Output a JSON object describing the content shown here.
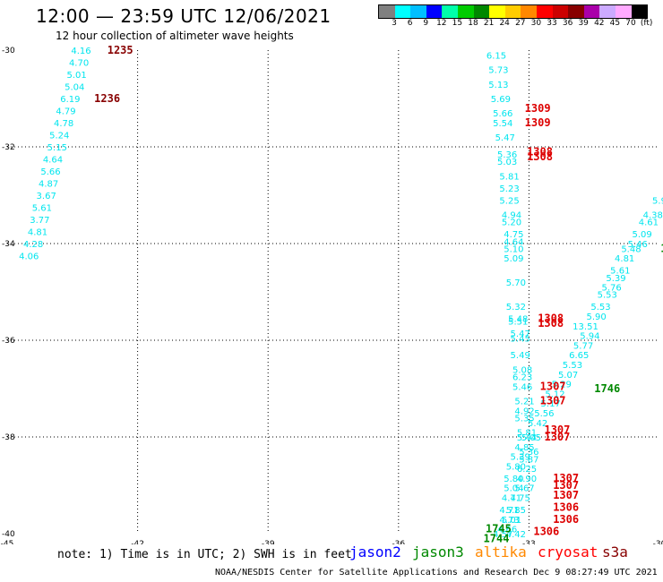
{
  "header": {
    "title": "12:00 — 23:59 UTC 12/06/2021",
    "subtitle": "12 hour collection of altimeter wave heights"
  },
  "color_scale": {
    "labels": [
      "3",
      "6",
      "9",
      "12",
      "15",
      "18",
      "21",
      "24",
      "27",
      "30",
      "33",
      "36",
      "39",
      "42",
      "45",
      "70",
      "(ft)"
    ],
    "colors": [
      "#808080",
      "#00ffff",
      "#00bfff",
      "#0000ff",
      "#00ffaa",
      "#00cc00",
      "#008800",
      "#ffff00",
      "#ffcc00",
      "#ff8800",
      "#ff0000",
      "#cc0000",
      "#880000",
      "#aa00aa",
      "#ccaaff",
      "#ffaaff",
      "#000000"
    ]
  },
  "map": {
    "lon_range": [
      -45,
      -30
    ],
    "lat_range": [
      -40,
      -30
    ],
    "lat_labels": [
      "-30",
      "-32",
      "-34",
      "-36",
      "-38",
      "-40"
    ],
    "lon_labels": [
      "-45",
      "-42",
      "-39",
      "-36",
      "-33",
      "-30"
    ],
    "grid": "dotted",
    "swh_color": "#00e5ee",
    "track_a": [
      {
        "lon": -43.3,
        "lat": -30.0,
        "v": "4.16"
      },
      {
        "lon": -43.35,
        "lat": -30.25,
        "v": "4.70"
      },
      {
        "lon": -43.4,
        "lat": -30.5,
        "v": "5.01"
      },
      {
        "lon": -43.45,
        "lat": -30.75,
        "v": "5.04"
      },
      {
        "lon": -43.55,
        "lat": -31.0,
        "v": "6.19"
      },
      {
        "lon": -43.65,
        "lat": -31.25,
        "v": "4.79"
      },
      {
        "lon": -43.7,
        "lat": -31.5,
        "v": "4.78"
      },
      {
        "lon": -43.8,
        "lat": -31.75,
        "v": "5.24"
      },
      {
        "lon": -43.85,
        "lat": -32.0,
        "v": "5.15"
      },
      {
        "lon": -43.95,
        "lat": -32.25,
        "v": "4.64"
      },
      {
        "lon": -44.0,
        "lat": -32.5,
        "v": "5.66"
      },
      {
        "lon": -44.05,
        "lat": -32.75,
        "v": "4.87"
      },
      {
        "lon": -44.1,
        "lat": -33.0,
        "v": "3.67"
      },
      {
        "lon": -44.2,
        "lat": -33.25,
        "v": "5.61"
      },
      {
        "lon": -44.25,
        "lat": -33.5,
        "v": "3.77"
      },
      {
        "lon": -44.3,
        "lat": -33.75,
        "v": "4.81"
      },
      {
        "lon": -44.4,
        "lat": -34.0,
        "v": "4.28"
      },
      {
        "lon": -44.5,
        "lat": -34.25,
        "v": "4.06"
      }
    ],
    "track_b": [
      {
        "lon": -33.75,
        "lat": -30.1,
        "v": "6.15"
      },
      {
        "lon": -33.7,
        "lat": -30.4,
        "v": "5.73"
      },
      {
        "lon": -33.7,
        "lat": -30.7,
        "v": "5.13"
      },
      {
        "lon": -33.65,
        "lat": -31.0,
        "v": "5.69"
      },
      {
        "lon": -33.6,
        "lat": -31.3,
        "v": "5.66"
      },
      {
        "lon": -33.6,
        "lat": -31.5,
        "v": "5.54"
      },
      {
        "lon": -33.55,
        "lat": -31.8,
        "v": "5.47"
      },
      {
        "lon": -33.5,
        "lat": -32.15,
        "v": "5.36"
      },
      {
        "lon": -33.5,
        "lat": -32.3,
        "v": "5.03"
      },
      {
        "lon": -33.45,
        "lat": -32.6,
        "v": "5.81"
      },
      {
        "lon": -33.45,
        "lat": -32.85,
        "v": "5.23"
      },
      {
        "lon": -33.45,
        "lat": -33.1,
        "v": "5.25"
      },
      {
        "lon": -33.4,
        "lat": -33.4,
        "v": "4.94"
      },
      {
        "lon": -33.4,
        "lat": -33.55,
        "v": "5.20"
      },
      {
        "lon": -33.35,
        "lat": -33.8,
        "v": "4.75"
      },
      {
        "lon": -33.35,
        "lat": -33.95,
        "v": "4.64"
      },
      {
        "lon": -33.35,
        "lat": -34.1,
        "v": "5.10"
      },
      {
        "lon": -33.35,
        "lat": -34.3,
        "v": "5.09"
      },
      {
        "lon": -33.3,
        "lat": -34.8,
        "v": "5.70"
      },
      {
        "lon": -33.3,
        "lat": -35.3,
        "v": "5.32"
      },
      {
        "lon": -33.25,
        "lat": -35.55,
        "v": "5.48"
      },
      {
        "lon": -33.25,
        "lat": -35.6,
        "v": "5.51"
      },
      {
        "lon": -33.2,
        "lat": -35.85,
        "v": "5.47"
      },
      {
        "lon": -33.2,
        "lat": -35.95,
        "v": "5.45"
      },
      {
        "lon": -33.2,
        "lat": -36.3,
        "v": "5.49"
      },
      {
        "lon": -33.15,
        "lat": -36.6,
        "v": "5.08"
      },
      {
        "lon": -33.15,
        "lat": -36.75,
        "v": "6.23"
      },
      {
        "lon": -33.15,
        "lat": -36.95,
        "v": "5.46"
      },
      {
        "lon": -33.1,
        "lat": -37.25,
        "v": "5.21"
      },
      {
        "lon": -33.1,
        "lat": -37.45,
        "v": "4.92"
      },
      {
        "lon": -33.1,
        "lat": -37.6,
        "v": "5.35"
      },
      {
        "lon": -33.05,
        "lat": -37.9,
        "v": "5.81"
      },
      {
        "lon": -33.05,
        "lat": -38.0,
        "v": "5.44"
      },
      {
        "lon": -33.0,
        "lat": -38.3,
        "v": "5.36"
      },
      {
        "lon": -33.0,
        "lat": -38.45,
        "v": "5.87"
      },
      {
        "lon": -33.05,
        "lat": -38.65,
        "v": "6.25"
      },
      {
        "lon": -33.05,
        "lat": -38.85,
        "v": "4.90"
      },
      {
        "lon": -33.1,
        "lat": -39.05,
        "v": "5.67"
      },
      {
        "lon": -33.2,
        "lat": -39.25,
        "v": "4.75"
      },
      {
        "lon": -33.3,
        "lat": -39.5,
        "v": "5.85"
      },
      {
        "lon": -33.4,
        "lat": -39.7,
        "v": "5.01"
      },
      {
        "lon": -33.5,
        "lat": -39.9,
        "v": "4.66"
      },
      {
        "lon": -33.6,
        "lat": -40.0,
        "v": "4.57"
      }
    ],
    "track_c": [
      {
        "lon": -30.0,
        "lat": -33.1,
        "v": "5.9"
      },
      {
        "lon": -30.15,
        "lat": -33.4,
        "v": "4.38"
      },
      {
        "lon": -30.25,
        "lat": -33.55,
        "v": "4.61"
      },
      {
        "lon": -30.4,
        "lat": -33.8,
        "v": "5.09"
      },
      {
        "lon": -30.5,
        "lat": -34.0,
        "v": "5.46"
      },
      {
        "lon": -30.65,
        "lat": -34.1,
        "v": "5.48"
      },
      {
        "lon": -30.8,
        "lat": -34.3,
        "v": "4.81"
      },
      {
        "lon": -30.9,
        "lat": -34.55,
        "v": "5.61"
      },
      {
        "lon": -31.0,
        "lat": -34.7,
        "v": "5.39"
      },
      {
        "lon": -31.1,
        "lat": -34.9,
        "v": "5.76"
      },
      {
        "lon": -31.2,
        "lat": -35.05,
        "v": "5.53"
      },
      {
        "lon": -31.35,
        "lat": -35.3,
        "v": "5.53"
      },
      {
        "lon": -31.45,
        "lat": -35.5,
        "v": "5.90"
      },
      {
        "lon": -31.6,
        "lat": -35.9,
        "v": "5.94"
      },
      {
        "lon": -31.75,
        "lat": -36.1,
        "v": "5.77"
      },
      {
        "lon": -31.85,
        "lat": -36.3,
        "v": "6.65"
      },
      {
        "lon": -32.0,
        "lat": -36.5,
        "v": "5.53"
      },
      {
        "lon": -32.1,
        "lat": -36.7,
        "v": "5.07"
      },
      {
        "lon": -32.25,
        "lat": -36.9,
        "v": "5.29"
      },
      {
        "lon": -32.4,
        "lat": -37.1,
        "v": "5.12"
      },
      {
        "lon": -32.5,
        "lat": -37.3,
        "v": "5.17"
      },
      {
        "lon": -32.65,
        "lat": -37.5,
        "v": "5.56"
      },
      {
        "lon": -32.8,
        "lat": -37.7,
        "v": "5.42"
      },
      {
        "lon": -32.95,
        "lat": -38.0,
        "v": "5.05"
      },
      {
        "lon": -33.1,
        "lat": -38.2,
        "v": "4.85"
      },
      {
        "lon": -33.2,
        "lat": -38.4,
        "v": "5.39"
      },
      {
        "lon": -33.3,
        "lat": -38.6,
        "v": "5.80"
      },
      {
        "lon": -33.35,
        "lat": -38.85,
        "v": "5.80"
      },
      {
        "lon": -33.35,
        "lat": -39.05,
        "v": "5.04"
      },
      {
        "lon": -33.4,
        "lat": -39.25,
        "v": "4.71"
      },
      {
        "lon": -33.45,
        "lat": -39.5,
        "v": "4.71"
      },
      {
        "lon": -33.45,
        "lat": -39.7,
        "v": "4.73"
      }
    ],
    "special_values": [
      {
        "lon": -31.7,
        "lat": -35.7,
        "v": "13.51",
        "color": "#aaee33"
      },
      {
        "lon": -33.3,
        "lat": -40.0,
        "v": "4.42",
        "color": "#888888"
      }
    ],
    "time_labels": [
      {
        "lon": -42.4,
        "lat": -30.0,
        "t": "1235",
        "color": "#880000"
      },
      {
        "lon": -42.7,
        "lat": -31.0,
        "t": "1236",
        "color": "#880000"
      },
      {
        "lon": -32.8,
        "lat": -31.2,
        "t": "1309",
        "color": "#dd0000"
      },
      {
        "lon": -32.8,
        "lat": -31.5,
        "t": "1309",
        "color": "#dd0000"
      },
      {
        "lon": -32.75,
        "lat": -32.1,
        "t": "1308",
        "color": "#dd0000"
      },
      {
        "lon": -32.75,
        "lat": -32.2,
        "t": "1308",
        "color": "#dd0000"
      },
      {
        "lon": -32.5,
        "lat": -35.55,
        "t": "1308",
        "color": "#dd0000"
      },
      {
        "lon": -32.5,
        "lat": -35.65,
        "t": "1308",
        "color": "#dd0000"
      },
      {
        "lon": -32.45,
        "lat": -36.95,
        "t": "1307",
        "color": "#dd0000"
      },
      {
        "lon": -32.45,
        "lat": -37.25,
        "t": "1307",
        "color": "#dd0000"
      },
      {
        "lon": -32.35,
        "lat": -37.85,
        "t": "1307",
        "color": "#dd0000"
      },
      {
        "lon": -32.35,
        "lat": -38.0,
        "t": "1307",
        "color": "#dd0000"
      },
      {
        "lon": -32.15,
        "lat": -38.85,
        "t": "1307",
        "color": "#dd0000"
      },
      {
        "lon": -32.15,
        "lat": -39.0,
        "t": "1307",
        "color": "#dd0000"
      },
      {
        "lon": -32.15,
        "lat": -39.2,
        "t": "1307",
        "color": "#dd0000"
      },
      {
        "lon": -32.15,
        "lat": -39.45,
        "t": "1306",
        "color": "#dd0000"
      },
      {
        "lon": -32.15,
        "lat": -39.7,
        "t": "1306",
        "color": "#dd0000"
      },
      {
        "lon": -32.6,
        "lat": -39.95,
        "t": "1306",
        "color": "#dd0000"
      },
      {
        "lon": -31.2,
        "lat": -37.0,
        "t": "1746",
        "color": "#008800"
      },
      {
        "lon": -33.7,
        "lat": -39.9,
        "t": "1745",
        "color": "#008800"
      },
      {
        "lon": -33.75,
        "lat": -40.1,
        "t": "1744",
        "color": "#008800"
      },
      {
        "lon": -29.9,
        "lat": -34.1,
        "t": "1",
        "color": "#008800"
      }
    ]
  },
  "footer": {
    "note": "note: 1) Time is in UTC; 2) SWH is in feet",
    "satellites": [
      {
        "name": "jason2",
        "color": "#0000ff"
      },
      {
        "name": "jason3",
        "color": "#008800"
      },
      {
        "name": "altika",
        "color": "#ff8800"
      },
      {
        "name": "cryosat",
        "color": "#ff0000"
      },
      {
        "name": "s3a",
        "color": "#880000"
      }
    ],
    "credit": "NOAA/NESDIS Center for Satellite Applications and Research   Dec  9 08:27:49 UTC 2021"
  }
}
